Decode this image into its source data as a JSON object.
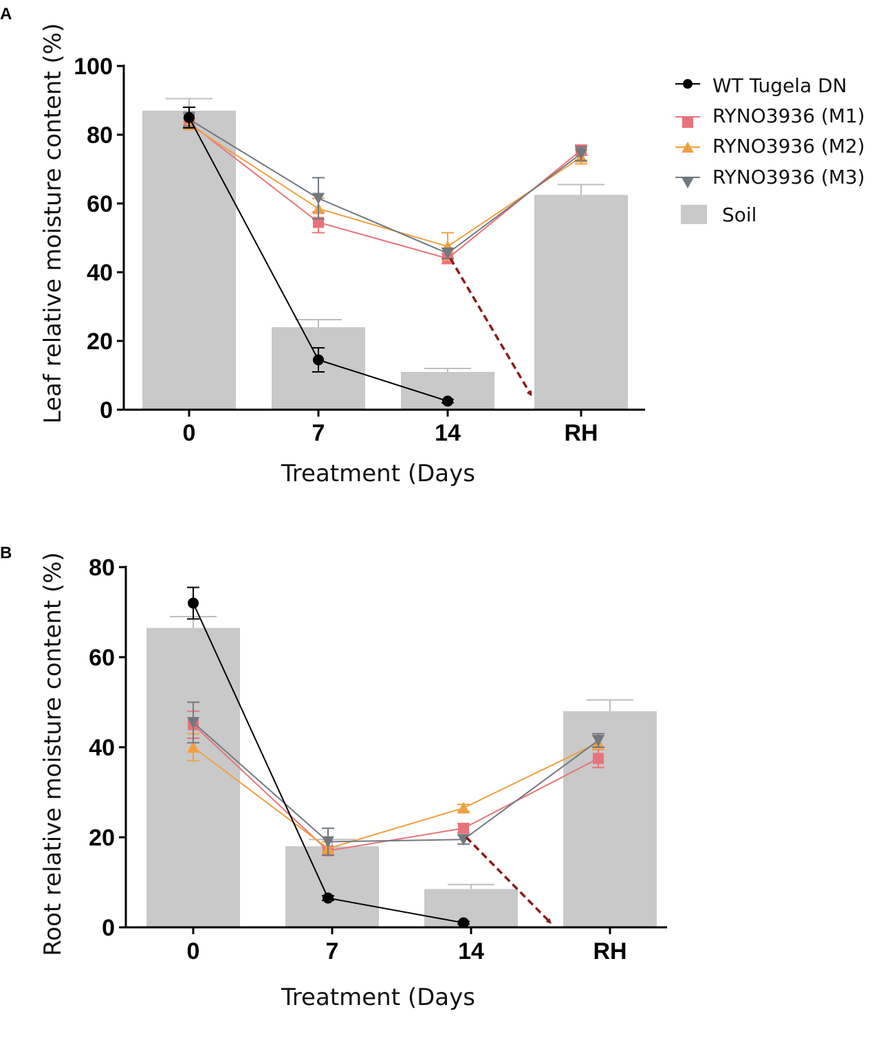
{
  "legend": {
    "series": [
      {
        "key": "wt",
        "label": "WT Tugela DN",
        "color": "#000000",
        "marker": "circle"
      },
      {
        "key": "m1",
        "label": "RYNO3936 (M1)",
        "color": "#e8737b",
        "marker": "square"
      },
      {
        "key": "m2",
        "label": "RYNO3936 (M2)",
        "color": "#f0a040",
        "marker": "triangle-up"
      },
      {
        "key": "m3",
        "label": "RYNO3936 (M3)",
        "color": "#707880",
        "marker": "triangle-down"
      }
    ],
    "bar_label": "Soil",
    "bar_color": "#c9c9c9"
  },
  "arrow_color": "#8b1a1a",
  "chart_data": [
    {
      "panel": "A",
      "type": "bar",
      "title": "",
      "xlabel": "Treatment (Days",
      "ylabel": "Leaf relative moisture content (%)",
      "categories": [
        "0",
        "7",
        "14",
        "RH"
      ],
      "ylim": [
        0,
        100
      ],
      "yticks": [
        0,
        20,
        40,
        60,
        80,
        100
      ],
      "bars": {
        "name": "Soil",
        "values": [
          87,
          24,
          11,
          62.5
        ],
        "errors": [
          3.5,
          2.2,
          1,
          3
        ]
      },
      "series": [
        {
          "name": "WT Tugela DN",
          "values": [
            85,
            14.5,
            2.5,
            null
          ],
          "errors": [
            3,
            3.5,
            0.5,
            null
          ]
        },
        {
          "name": "RYNO3936 (M1)",
          "values": [
            83.5,
            54.5,
            44,
            75.5
          ],
          "errors": [
            1.5,
            3,
            1.5,
            1.5
          ]
        },
        {
          "name": "RYNO3936 (M2)",
          "values": [
            83,
            58.5,
            47.5,
            73.5
          ],
          "errors": [
            1.5,
            3,
            4,
            2
          ]
        },
        {
          "name": "RYNO3936 (M3)",
          "values": [
            84.5,
            61.5,
            45.5,
            74.5
          ],
          "errors": [
            2,
            6,
            1.5,
            2
          ]
        }
      ],
      "arrow": {
        "from_category": "14",
        "from_value": 44,
        "to_value": 3
      }
    },
    {
      "panel": "B",
      "type": "bar",
      "title": "",
      "xlabel": "Treatment (Days",
      "ylabel": "Root relative moisture content (%)",
      "categories": [
        "0",
        "7",
        "14",
        "RH"
      ],
      "ylim": [
        0,
        80
      ],
      "yticks": [
        0,
        20,
        40,
        60,
        80
      ],
      "bars": {
        "name": "Soil",
        "values": [
          66.5,
          18,
          8.5,
          48
        ],
        "errors": [
          2.5,
          1.5,
          1,
          2.5
        ]
      },
      "series": [
        {
          "name": "WT Tugela DN",
          "values": [
            72,
            6.5,
            1,
            null
          ],
          "errors": [
            3.5,
            0.5,
            0.3,
            null
          ]
        },
        {
          "name": "RYNO3936 (M1)",
          "values": [
            45,
            17,
            22,
            37.5
          ],
          "errors": [
            3,
            1,
            1,
            2
          ]
        },
        {
          "name": "RYNO3936 (M2)",
          "values": [
            40,
            17.5,
            26.5,
            41
          ],
          "errors": [
            3,
            1.5,
            0.8,
            1.5
          ]
        },
        {
          "name": "RYNO3936 (M3)",
          "values": [
            45.5,
            19,
            19.5,
            41.5
          ],
          "errors": [
            4.5,
            3,
            1,
            1.5
          ]
        }
      ],
      "arrow": {
        "from_category": "14",
        "from_value": 20,
        "to_value": 0
      }
    }
  ]
}
